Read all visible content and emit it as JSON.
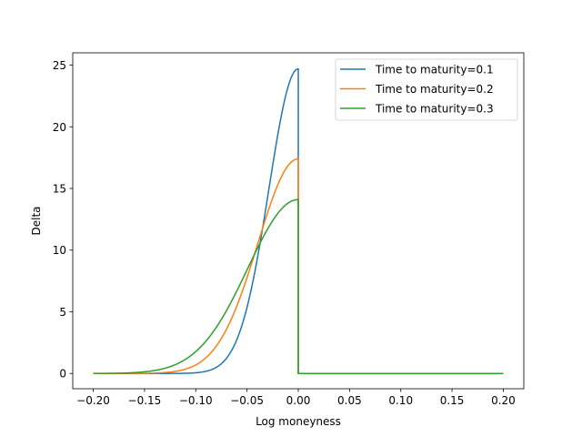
{
  "chart_data": {
    "type": "line",
    "xlabel": "Log moneyness",
    "ylabel": "Delta",
    "xlim": [
      -0.22,
      0.22
    ],
    "ylim": [
      -1.24,
      26.0
    ],
    "xticks": [
      -0.2,
      -0.15,
      -0.1,
      -0.05,
      0.0,
      0.05,
      0.1,
      0.15,
      0.2
    ],
    "xtick_labels": [
      "−0.20",
      "−0.15",
      "−0.10",
      "−0.05",
      "0.00",
      "0.05",
      "0.10",
      "0.15",
      "0.20"
    ],
    "yticks": [
      0,
      5,
      10,
      15,
      20,
      25
    ],
    "ytick_labels": [
      "0",
      "5",
      "10",
      "15",
      "20",
      "25"
    ],
    "grid": false,
    "legend_position": "top-right",
    "x_range": [
      -0.2,
      0.2
    ],
    "series": [
      {
        "name": "Time to maturity=0.1",
        "color": "#1f77b4",
        "peak": 24.7,
        "sigma": 0.0286
      },
      {
        "name": "Time to maturity=0.2",
        "color": "#ff7f0e",
        "peak": 17.4,
        "sigma": 0.0394
      },
      {
        "name": "Time to maturity=0.3",
        "color": "#2ca02c",
        "peak": 14.1,
        "sigma": 0.0491
      }
    ]
  }
}
